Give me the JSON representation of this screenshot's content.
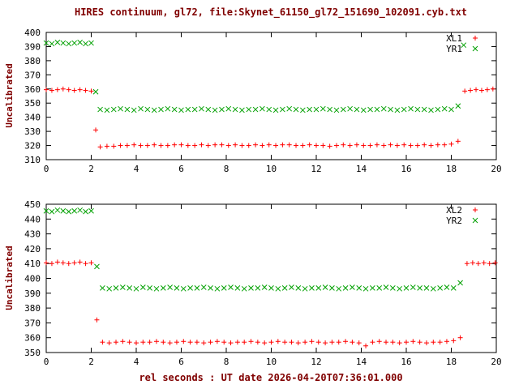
{
  "title": "HIRES continuum, gl72, file:Skynet_61150_gl72_151690_102091.cyb.txt",
  "xlabel": "rel seconds : UT date 2026-04-20T07:36:01.000",
  "colors": {
    "label_text": "#800000",
    "tick_text": "#000000",
    "series_red": "#ff0000",
    "series_green": "#00a000",
    "border": "#000000",
    "background": "#ffffff"
  },
  "chart_data": [
    {
      "type": "scatter",
      "title": "",
      "ylabel": "Uncalibrated",
      "xlabel": "",
      "xlim": [
        0,
        20
      ],
      "ylim": [
        310,
        400
      ],
      "xtick_step": 2,
      "ytick_step": 10,
      "grid": false,
      "legend_position": "top-right",
      "series": [
        {
          "name": "XL1",
          "marker": "plus",
          "color": "#ff0000",
          "points": [
            [
              0,
              359.5
            ],
            [
              0.25,
              359
            ],
            [
              0.5,
              359.5
            ],
            [
              0.75,
              360
            ],
            [
              1,
              359.5
            ],
            [
              1.25,
              359
            ],
            [
              1.5,
              359.5
            ],
            [
              1.75,
              359
            ],
            [
              2,
              358.5
            ],
            [
              2.2,
              331
            ],
            [
              2.4,
              319
            ],
            [
              2.7,
              319.5
            ],
            [
              3,
              319.5
            ],
            [
              3.3,
              320
            ],
            [
              3.6,
              320
            ],
            [
              3.9,
              320.5
            ],
            [
              4.2,
              320
            ],
            [
              4.5,
              320
            ],
            [
              4.8,
              320.5
            ],
            [
              5.1,
              320
            ],
            [
              5.4,
              320
            ],
            [
              5.7,
              320.5
            ],
            [
              6,
              320.5
            ],
            [
              6.3,
              320
            ],
            [
              6.6,
              320
            ],
            [
              6.9,
              320.5
            ],
            [
              7.2,
              320
            ],
            [
              7.5,
              320.5
            ],
            [
              7.8,
              320.5
            ],
            [
              8.1,
              320
            ],
            [
              8.4,
              320.5
            ],
            [
              8.7,
              320
            ],
            [
              9,
              320
            ],
            [
              9.3,
              320.5
            ],
            [
              9.6,
              320
            ],
            [
              9.9,
              320.5
            ],
            [
              10.2,
              320
            ],
            [
              10.5,
              320.5
            ],
            [
              10.8,
              320.5
            ],
            [
              11.1,
              320
            ],
            [
              11.4,
              320
            ],
            [
              11.7,
              320.5
            ],
            [
              12,
              320
            ],
            [
              12.3,
              320
            ],
            [
              12.6,
              319.5
            ],
            [
              12.9,
              320
            ],
            [
              13.2,
              320.5
            ],
            [
              13.5,
              320
            ],
            [
              13.8,
              320.5
            ],
            [
              14.1,
              320
            ],
            [
              14.4,
              320
            ],
            [
              14.7,
              320.5
            ],
            [
              15,
              320
            ],
            [
              15.3,
              320.5
            ],
            [
              15.6,
              320
            ],
            [
              15.9,
              320.5
            ],
            [
              16.2,
              320
            ],
            [
              16.5,
              320
            ],
            [
              16.8,
              320.5
            ],
            [
              17.1,
              320
            ],
            [
              17.4,
              320.5
            ],
            [
              17.7,
              320.5
            ],
            [
              18,
              321
            ],
            [
              18.3,
              323
            ],
            [
              18.6,
              358.5
            ],
            [
              18.85,
              359
            ],
            [
              19.1,
              359.5
            ],
            [
              19.35,
              359
            ],
            [
              19.6,
              359.5
            ],
            [
              19.85,
              360
            ]
          ]
        },
        {
          "name": "YR1",
          "marker": "cross",
          "color": "#00a000",
          "points": [
            [
              0,
              392.5
            ],
            [
              0.25,
              392
            ],
            [
              0.5,
              393
            ],
            [
              0.75,
              392.5
            ],
            [
              1,
              392
            ],
            [
              1.25,
              392.5
            ],
            [
              1.5,
              393
            ],
            [
              1.75,
              392
            ],
            [
              2,
              392.5
            ],
            [
              2.2,
              358
            ],
            [
              2.4,
              345.5
            ],
            [
              2.7,
              345
            ],
            [
              3,
              345.5
            ],
            [
              3.3,
              346
            ],
            [
              3.6,
              345.5
            ],
            [
              3.9,
              345
            ],
            [
              4.2,
              346
            ],
            [
              4.5,
              345.5
            ],
            [
              4.8,
              345
            ],
            [
              5.1,
              345.5
            ],
            [
              5.4,
              346
            ],
            [
              5.7,
              345.5
            ],
            [
              6,
              345
            ],
            [
              6.3,
              345.5
            ],
            [
              6.6,
              345.5
            ],
            [
              6.9,
              346
            ],
            [
              7.2,
              345.5
            ],
            [
              7.5,
              345
            ],
            [
              7.8,
              345.5
            ],
            [
              8.1,
              346
            ],
            [
              8.4,
              345.5
            ],
            [
              8.7,
              345
            ],
            [
              9,
              345.5
            ],
            [
              9.3,
              345.5
            ],
            [
              9.6,
              346
            ],
            [
              9.9,
              345.5
            ],
            [
              10.2,
              345
            ],
            [
              10.5,
              345.5
            ],
            [
              10.8,
              346
            ],
            [
              11.1,
              345.5
            ],
            [
              11.4,
              345
            ],
            [
              11.7,
              345.5
            ],
            [
              12,
              345.5
            ],
            [
              12.3,
              346
            ],
            [
              12.6,
              345.5
            ],
            [
              12.9,
              345
            ],
            [
              13.2,
              345.5
            ],
            [
              13.5,
              346
            ],
            [
              13.8,
              345.5
            ],
            [
              14.1,
              345
            ],
            [
              14.4,
              345.5
            ],
            [
              14.7,
              345.5
            ],
            [
              15,
              346
            ],
            [
              15.3,
              345.5
            ],
            [
              15.6,
              345
            ],
            [
              15.9,
              345.5
            ],
            [
              16.2,
              346
            ],
            [
              16.5,
              345.5
            ],
            [
              16.8,
              345.5
            ],
            [
              17.1,
              345
            ],
            [
              17.4,
              345.5
            ],
            [
              17.7,
              346
            ],
            [
              18,
              345.5
            ],
            [
              18.3,
              348
            ],
            [
              18.55,
              391
            ]
          ]
        }
      ]
    },
    {
      "type": "scatter",
      "title": "",
      "ylabel": "Uncalibrated",
      "xlabel": "rel seconds : UT date 2026-04-20T07:36:01.000",
      "xlim": [
        0,
        20
      ],
      "ylim": [
        350,
        450
      ],
      "xtick_step": 2,
      "ytick_step": 10,
      "grid": false,
      "legend_position": "top-right",
      "series": [
        {
          "name": "XL2",
          "marker": "plus",
          "color": "#ff0000",
          "points": [
            [
              0,
              410.5
            ],
            [
              0.25,
              410
            ],
            [
              0.5,
              411
            ],
            [
              0.75,
              410.5
            ],
            [
              1,
              410
            ],
            [
              1.25,
              410.5
            ],
            [
              1.5,
              411
            ],
            [
              1.75,
              410
            ],
            [
              2,
              410.5
            ],
            [
              2.25,
              372
            ],
            [
              2.5,
              357
            ],
            [
              2.8,
              356.5
            ],
            [
              3.1,
              357
            ],
            [
              3.4,
              357.5
            ],
            [
              3.7,
              357
            ],
            [
              4,
              356.5
            ],
            [
              4.3,
              357
            ],
            [
              4.6,
              357
            ],
            [
              4.9,
              357.5
            ],
            [
              5.2,
              357
            ],
            [
              5.5,
              356.5
            ],
            [
              5.8,
              357
            ],
            [
              6.1,
              357.5
            ],
            [
              6.4,
              357
            ],
            [
              6.7,
              357
            ],
            [
              7,
              356.5
            ],
            [
              7.3,
              357
            ],
            [
              7.6,
              357.5
            ],
            [
              7.9,
              357
            ],
            [
              8.2,
              356.5
            ],
            [
              8.5,
              357
            ],
            [
              8.8,
              357
            ],
            [
              9.1,
              357.5
            ],
            [
              9.4,
              357
            ],
            [
              9.7,
              356.5
            ],
            [
              10,
              357
            ],
            [
              10.3,
              357.5
            ],
            [
              10.6,
              357
            ],
            [
              10.9,
              357
            ],
            [
              11.2,
              356.5
            ],
            [
              11.5,
              357
            ],
            [
              11.8,
              357.5
            ],
            [
              12.1,
              357
            ],
            [
              12.4,
              356.5
            ],
            [
              12.7,
              357
            ],
            [
              13,
              357
            ],
            [
              13.3,
              357.5
            ],
            [
              13.6,
              357
            ],
            [
              13.9,
              356.5
            ],
            [
              14.2,
              354.5
            ],
            [
              14.5,
              357
            ],
            [
              14.8,
              357.5
            ],
            [
              15.1,
              357
            ],
            [
              15.4,
              357
            ],
            [
              15.7,
              356.5
            ],
            [
              16,
              357
            ],
            [
              16.3,
              357.5
            ],
            [
              16.6,
              357
            ],
            [
              16.9,
              356.5
            ],
            [
              17.2,
              357
            ],
            [
              17.5,
              357
            ],
            [
              17.8,
              357.5
            ],
            [
              18.1,
              358
            ],
            [
              18.4,
              360
            ],
            [
              18.7,
              410
            ],
            [
              18.95,
              410.5
            ],
            [
              19.2,
              410
            ],
            [
              19.45,
              410.5
            ],
            [
              19.7,
              410
            ],
            [
              19.95,
              410.5
            ]
          ]
        },
        {
          "name": "YR2",
          "marker": "cross",
          "color": "#00a000",
          "points": [
            [
              0,
              445.5
            ],
            [
              0.25,
              445
            ],
            [
              0.5,
              446
            ],
            [
              0.75,
              445.5
            ],
            [
              1,
              445
            ],
            [
              1.25,
              445.5
            ],
            [
              1.5,
              446
            ],
            [
              1.75,
              445
            ],
            [
              2,
              445.5
            ],
            [
              2.25,
              408
            ],
            [
              2.5,
              393.5
            ],
            [
              2.8,
              393
            ],
            [
              3.1,
              393.5
            ],
            [
              3.4,
              394
            ],
            [
              3.7,
              393.5
            ],
            [
              4,
              393
            ],
            [
              4.3,
              394
            ],
            [
              4.6,
              393.5
            ],
            [
              4.9,
              393
            ],
            [
              5.2,
              393.5
            ],
            [
              5.5,
              394
            ],
            [
              5.8,
              393.5
            ],
            [
              6.1,
              393
            ],
            [
              6.4,
              393.5
            ],
            [
              6.7,
              393.5
            ],
            [
              7,
              394
            ],
            [
              7.3,
              393.5
            ],
            [
              7.6,
              393
            ],
            [
              7.9,
              393.5
            ],
            [
              8.2,
              394
            ],
            [
              8.5,
              393.5
            ],
            [
              8.8,
              393
            ],
            [
              9.1,
              393.5
            ],
            [
              9.4,
              393.5
            ],
            [
              9.7,
              394
            ],
            [
              10,
              393.5
            ],
            [
              10.3,
              393
            ],
            [
              10.6,
              393.5
            ],
            [
              10.9,
              394
            ],
            [
              11.2,
              393.5
            ],
            [
              11.5,
              393
            ],
            [
              11.8,
              393.5
            ],
            [
              12.1,
              393.5
            ],
            [
              12.4,
              394
            ],
            [
              12.7,
              393.5
            ],
            [
              13,
              393
            ],
            [
              13.3,
              393.5
            ],
            [
              13.6,
              394
            ],
            [
              13.9,
              393.5
            ],
            [
              14.2,
              393
            ],
            [
              14.5,
              393.5
            ],
            [
              14.8,
              393.5
            ],
            [
              15.1,
              394
            ],
            [
              15.4,
              393.5
            ],
            [
              15.7,
              393
            ],
            [
              16,
              393.5
            ],
            [
              16.3,
              394
            ],
            [
              16.6,
              393.5
            ],
            [
              16.9,
              393.5
            ],
            [
              17.2,
              393
            ],
            [
              17.5,
              393.5
            ],
            [
              17.8,
              394
            ],
            [
              18.1,
              393.5
            ],
            [
              18.4,
              397
            ]
          ]
        }
      ]
    }
  ]
}
